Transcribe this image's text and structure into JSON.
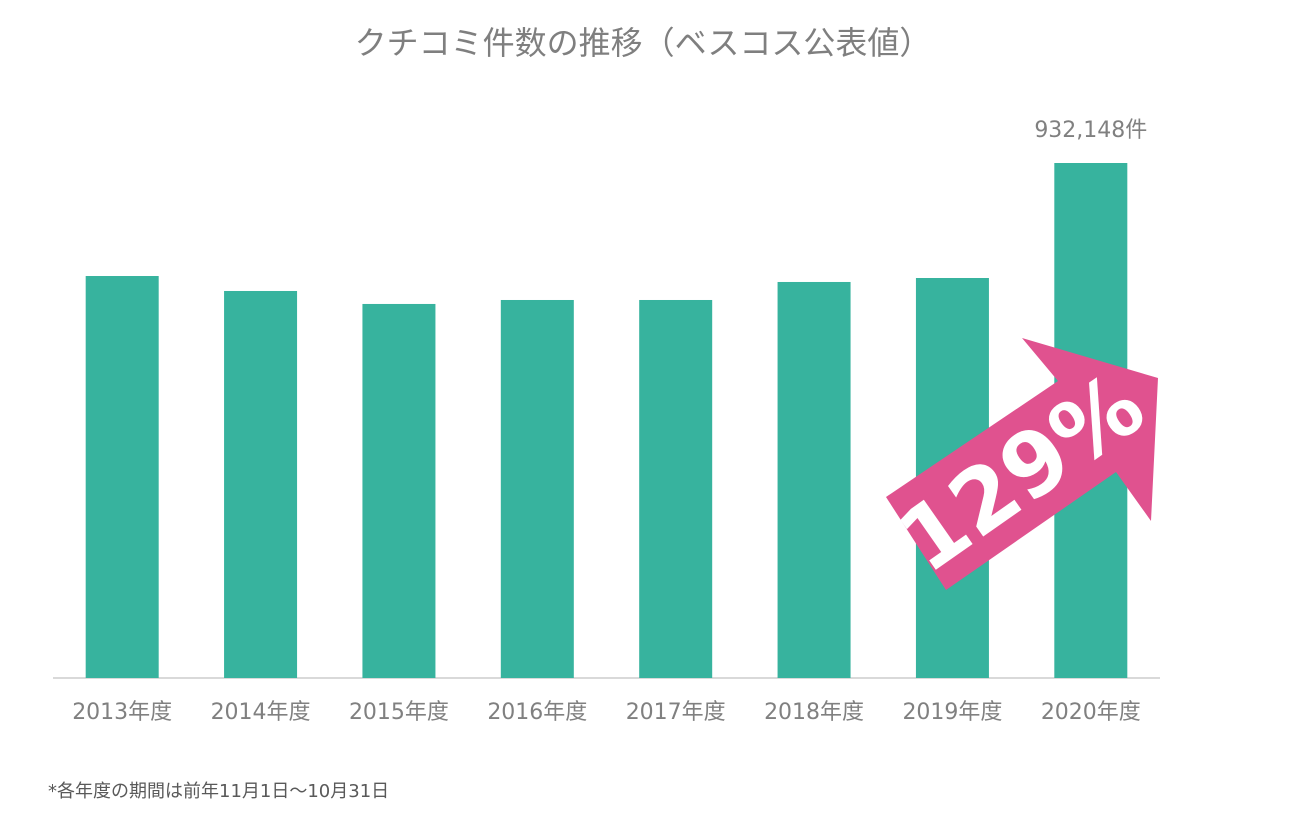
{
  "chart_data": {
    "type": "bar",
    "title": "クチコミ件数の推移（ベスコス公表値）",
    "categories": [
      "2013年度",
      "2014年度",
      "2015年度",
      "2016年度",
      "2017年度",
      "2018年度",
      "2019年度",
      "2020年度"
    ],
    "values": [
      727600,
      700500,
      677000,
      684200,
      684200,
      716800,
      724000,
      932148
    ],
    "value_labels": [
      null,
      null,
      null,
      null,
      null,
      null,
      null,
      "932,148件"
    ],
    "color": "#37b39e",
    "annotation": "129%",
    "footnote": "*各年度の期間は前年11月1日〜10月31日"
  }
}
